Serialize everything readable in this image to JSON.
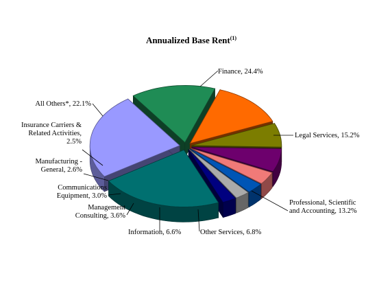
{
  "chart_data": {
    "type": "pie",
    "style": "3d-exploded",
    "title": "Annualized  Base Rent",
    "title_superscript": "(1)",
    "slices": [
      {
        "label": [
          "Finance, 24.4%"
        ],
        "value": 24.4,
        "color": "#9999ff"
      },
      {
        "label": [
          "Legal Services, 15.2%"
        ],
        "value": 15.2,
        "color": "#1f8c55"
      },
      {
        "label": [
          "Professional, Scientific",
          "and Accounting, 13.2%"
        ],
        "value": 13.2,
        "color": "#ff6a00"
      },
      {
        "label": [
          "Other Services, 6.8%"
        ],
        "value": 6.8,
        "color": "#7c7d00"
      },
      {
        "label": [
          "Information, 6.6%"
        ],
        "value": 6.6,
        "color": "#6d006d"
      },
      {
        "label": [
          "Management",
          "Consulting, 3.6%"
        ],
        "value": 3.6,
        "color": "#f07a78"
      },
      {
        "label": [
          "Communications",
          "Equipment, 3.0%"
        ],
        "value": 3.0,
        "color": "#0055b5"
      },
      {
        "label": [
          "Manufacturing -",
          "General, 2.6%"
        ],
        "value": 2.6,
        "color": "#aaaaaa"
      },
      {
        "label": [
          "Insurance Carriers &",
          "Related Activities,",
          "2.5%"
        ],
        "value": 2.5,
        "color": "#000080"
      },
      {
        "label": [
          "All Others*, 22.1%"
        ],
        "value": 22.1,
        "color": "#007070"
      }
    ]
  }
}
